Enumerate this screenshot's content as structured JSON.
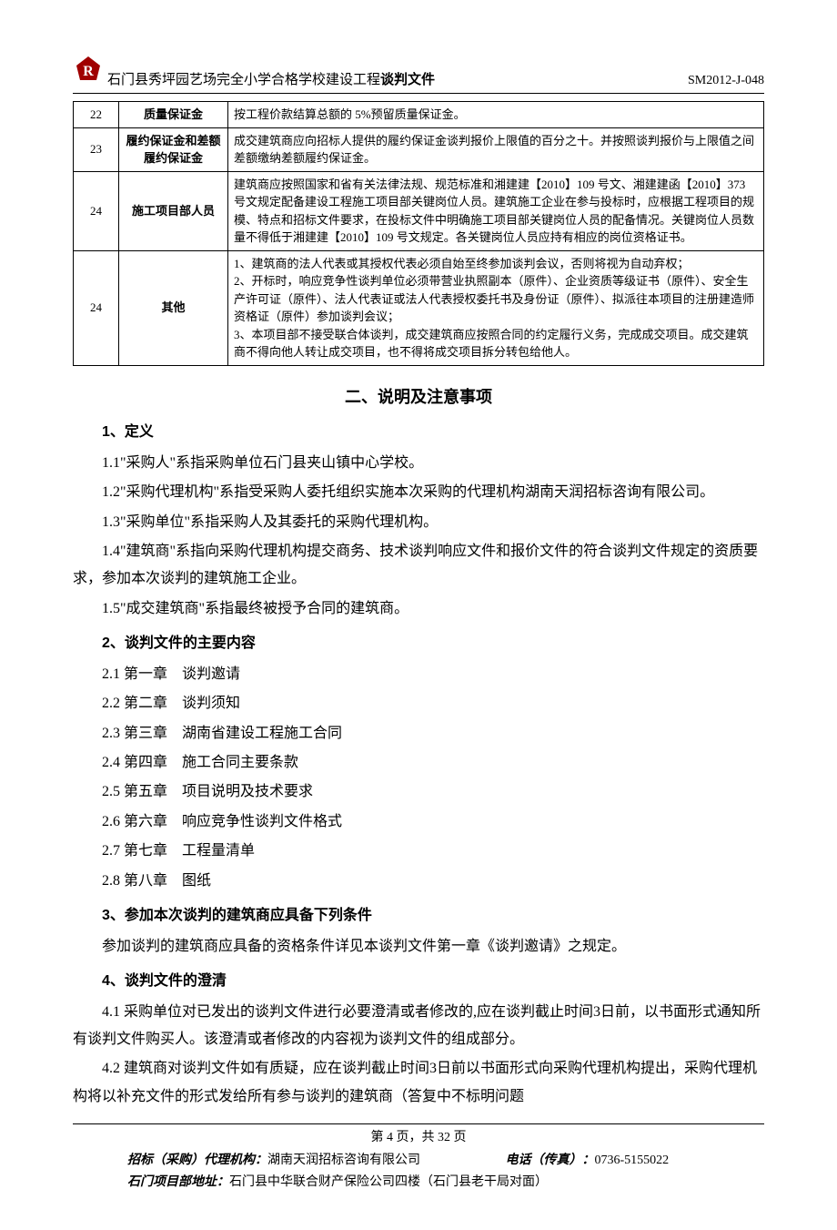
{
  "header": {
    "title_plain": "石门县秀坪园艺场完全小学合格学校建设工程",
    "title_bold": "谈判文件",
    "doc_code": "SM2012-J-048"
  },
  "table": {
    "rows": [
      {
        "num": "22",
        "label": "质量保证金",
        "desc": "按工程价款结算总额的 5%预留质量保证金。"
      },
      {
        "num": "23",
        "label": "履约保证金和差额履约保证金",
        "desc": "成交建筑商应向招标人提供的履约保证金谈判报价上限值的百分之十。并按照谈判报价与上限值之间差额缴纳差额履约保证金。"
      },
      {
        "num": "24",
        "label": "施工项目部人员",
        "desc": "建筑商应按照国家和省有关法律法规、规范标准和湘建建【2010】109 号文、湘建建函【2010】373 号文规定配备建设工程施工项目部关键岗位人员。建筑施工企业在参与投标时，应根据工程项目的规模、特点和招标文件要求，在投标文件中明确施工项目部关键岗位人员的配备情况。关键岗位人员数量不得低于湘建建【2010】109 号文规定。各关键岗位人员应持有相应的岗位资格证书。"
      },
      {
        "num": "24",
        "label": "其他",
        "desc": "1、建筑商的法人代表或其授权代表必须自始至终参加谈判会议，否则将视为自动弃权；\n2、开标时，响应竞争性谈判单位必须带营业执照副本（原件）、企业资质等级证书（原件）、安全生产许可证（原件）、法人代表证或法人代表授权委托书及身份证（原件）、拟派往本项目的注册建造师资格证（原件）参加谈判会议；\n3、本项目部不接受联合体谈判，成交建筑商应按照合同的约定履行义务，完成成交项目。成交建筑商不得向他人转让成交项目，也不得将成交项目拆分转包给他人。"
      }
    ]
  },
  "section2": {
    "title": "二、说明及注意事项",
    "sub1": {
      "title": "1、定义",
      "items": [
        "1.1\"采购人\"系指采购单位石门县夹山镇中心学校。",
        "1.2\"采购代理机构\"系指受采购人委托组织实施本次采购的代理机构湖南天润招标咨询有限公司。",
        "1.3\"采购单位\"系指采购人及其委托的采购代理机构。",
        "1.4\"建筑商\"系指向采购代理机构提交商务、技术谈判响应文件和报价文件的符合谈判文件规定的资质要求，参加本次谈判的建筑施工企业。",
        "1.5\"成交建筑商\"系指最终被授予合同的建筑商。"
      ]
    },
    "sub2": {
      "title": "2、谈判文件的主要内容",
      "chapters": [
        "2.1 第一章　谈判邀请",
        "2.2 第二章　谈判须知",
        "2.3 第三章　湖南省建设工程施工合同",
        "2.4 第四章　施工合同主要条款",
        "2.5 第五章　项目说明及技术要求",
        "2.6 第六章　响应竞争性谈判文件格式",
        "2.7 第七章　工程量清单",
        "2.8 第八章　图纸"
      ]
    },
    "sub3": {
      "title": "3、参加本次谈判的建筑商应具备下列条件",
      "text": "参加谈判的建筑商应具备的资格条件详见本谈判文件第一章《谈判邀请》之规定。"
    },
    "sub4": {
      "title": "4、谈判文件的澄清",
      "items": [
        "4.1 采购单位对已发出的谈判文件进行必要澄清或者修改的,应在谈判截止时间3日前，以书面形式通知所有谈判文件购买人。该澄清或者修改的内容视为谈判文件的组成部分。",
        "4.2 建筑商对谈判文件如有质疑，应在谈判截止时间3日前以书面形式向采购代理机构提出，采购代理机构将以补充文件的形式发给所有参与谈判的建筑商（答复中不标明问题"
      ]
    }
  },
  "footer": {
    "page": "第 4 页，共 32 页",
    "agency_label": "招标（采购）代理机构：",
    "agency_name": "湖南天润招标咨询有限公司",
    "phone_label": "电话（传真）：",
    "phone": "0736-5155022",
    "addr_label": "石门项目部地址：",
    "addr": "石门县中华联合财产保险公司四楼（石门县老干局对面）"
  }
}
